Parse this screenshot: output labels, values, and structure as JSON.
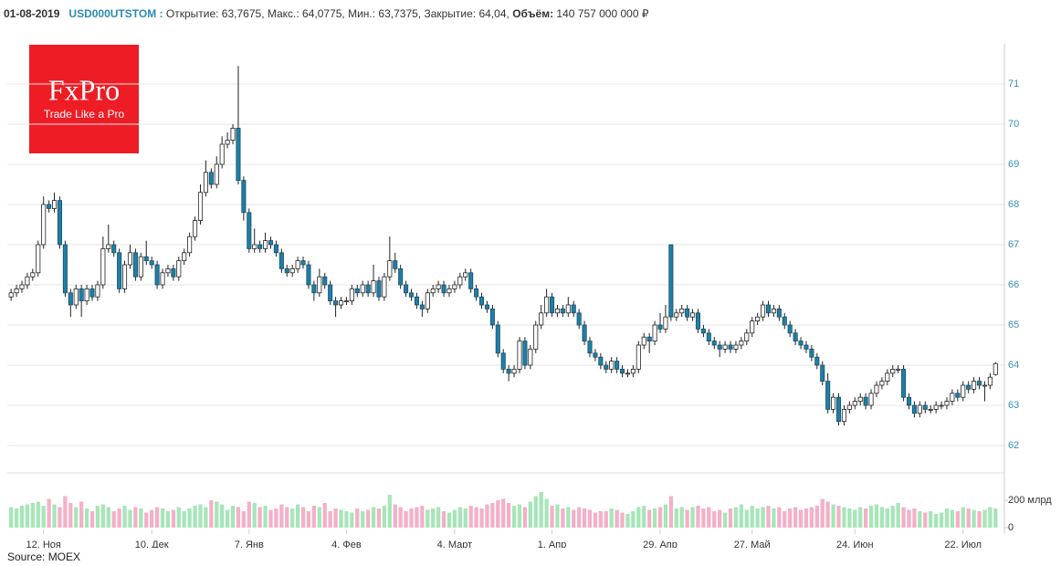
{
  "header": {
    "date": "01-08-2019",
    "ticker": "USD000UTSTOM :",
    "text": "Открытие: 63,7675, Макс.: 64,0775, Мин.: 63,7375, Закрытие: 64,04,",
    "volume_label": "Объём:",
    "volume_text": "140 757 000 000 ₽"
  },
  "logo": {
    "title": "FxPro",
    "slogan": "Trade Like a Pro"
  },
  "source": "Source: MOEX",
  "chart_data": {
    "type": "candlestick",
    "up_color": "#ffffff",
    "down_color": "#1f7fa6",
    "volume_up_color": "#a6e6b8",
    "volume_down_color": "#f4b0c8",
    "xlim": [
      -0.7,
      183.3
    ],
    "xticks": [
      {
        "value": 6,
        "label": "12. Ноя"
      },
      {
        "value": 26,
        "label": "10. Дек"
      },
      {
        "value": 44,
        "label": "7. Янв"
      },
      {
        "value": 62,
        "label": "4. Фев"
      },
      {
        "value": 82,
        "label": "4. Март"
      },
      {
        "value": 100,
        "label": "1. Апр"
      },
      {
        "value": 120,
        "label": "29. Апр"
      },
      {
        "value": 137,
        "label": "27. Май"
      },
      {
        "value": 156,
        "label": "24. Июн"
      },
      {
        "value": 176,
        "label": "22. Июл"
      }
    ],
    "ylim": [
      61.5,
      72
    ],
    "yticks": [
      62,
      63,
      64,
      65,
      66,
      67,
      68,
      69,
      70,
      71
    ],
    "grid": true,
    "y2lim": [
      0,
      400
    ],
    "y2ticks": [
      0,
      {
        "value": 200,
        "label": "200 млрд"
      }
    ],
    "ohlc": [
      [
        65.7,
        65.9,
        65.6,
        65.8
      ],
      [
        65.8,
        66.0,
        65.7,
        65.9
      ],
      [
        65.9,
        66.1,
        65.8,
        66.0
      ],
      [
        66.0,
        66.3,
        65.9,
        66.2
      ],
      [
        66.2,
        66.4,
        66.1,
        66.3
      ],
      [
        66.3,
        67.1,
        66.2,
        67.0
      ],
      [
        67.0,
        68.2,
        66.9,
        68.0
      ],
      [
        68.0,
        68.1,
        67.8,
        67.9
      ],
      [
        67.9,
        68.3,
        67.8,
        68.1
      ],
      [
        68.1,
        68.2,
        66.9,
        67.0
      ],
      [
        67.0,
        67.1,
        65.7,
        65.8
      ],
      [
        65.8,
        65.9,
        65.2,
        65.5
      ],
      [
        65.5,
        66.0,
        65.4,
        65.9
      ],
      [
        65.9,
        66.0,
        65.2,
        65.6
      ],
      [
        65.6,
        66.0,
        65.5,
        65.9
      ],
      [
        65.9,
        66.0,
        65.6,
        65.7
      ],
      [
        65.7,
        66.1,
        65.6,
        66.0
      ],
      [
        66.0,
        67.2,
        65.9,
        66.9
      ],
      [
        66.9,
        67.5,
        66.8,
        67.0
      ],
      [
        67.0,
        67.1,
        66.7,
        66.8
      ],
      [
        66.8,
        66.9,
        65.8,
        65.9
      ],
      [
        65.9,
        66.6,
        65.8,
        66.5
      ],
      [
        66.5,
        67.0,
        66.4,
        66.8
      ],
      [
        66.8,
        66.9,
        66.1,
        66.2
      ],
      [
        66.2,
        66.8,
        66.1,
        66.7
      ],
      [
        66.7,
        67.1,
        66.5,
        66.6
      ],
      [
        66.6,
        66.7,
        66.4,
        66.5
      ],
      [
        66.5,
        66.6,
        65.9,
        66.0
      ],
      [
        66.0,
        66.4,
        65.9,
        66.3
      ],
      [
        66.3,
        66.5,
        66.2,
        66.4
      ],
      [
        66.4,
        66.5,
        66.1,
        66.2
      ],
      [
        66.2,
        66.7,
        66.1,
        66.6
      ],
      [
        66.6,
        66.9,
        66.5,
        66.8
      ],
      [
        66.8,
        67.3,
        66.7,
        67.2
      ],
      [
        67.2,
        67.7,
        67.1,
        67.6
      ],
      [
        67.6,
        68.5,
        67.5,
        68.3
      ],
      [
        68.3,
        69.1,
        68.2,
        68.8
      ],
      [
        68.8,
        68.9,
        68.4,
        68.5
      ],
      [
        68.5,
        69.2,
        68.4,
        69.0
      ],
      [
        69.0,
        69.7,
        68.9,
        69.5
      ],
      [
        69.5,
        69.8,
        69.4,
        69.6
      ],
      [
        69.6,
        70.0,
        69.5,
        69.9
      ],
      [
        69.9,
        71.45,
        68.5,
        68.6
      ],
      [
        68.6,
        68.7,
        67.6,
        67.8
      ],
      [
        67.8,
        67.9,
        66.8,
        66.9
      ],
      [
        66.9,
        67.4,
        66.8,
        67.0
      ],
      [
        67.0,
        67.1,
        66.8,
        66.9
      ],
      [
        66.9,
        67.3,
        66.8,
        67.1
      ],
      [
        67.1,
        67.2,
        66.9,
        67.0
      ],
      [
        67.0,
        67.1,
        66.7,
        66.8
      ],
      [
        66.8,
        66.9,
        66.3,
        66.4
      ],
      [
        66.4,
        66.5,
        66.2,
        66.3
      ],
      [
        66.3,
        66.5,
        66.2,
        66.4
      ],
      [
        66.4,
        66.7,
        66.3,
        66.6
      ],
      [
        66.6,
        66.7,
        66.4,
        66.5
      ],
      [
        66.5,
        66.6,
        65.9,
        66.0
      ],
      [
        66.0,
        66.1,
        65.6,
        65.8
      ],
      [
        65.8,
        66.4,
        65.7,
        66.2
      ],
      [
        66.2,
        66.3,
        65.9,
        66.0
      ],
      [
        66.0,
        66.1,
        65.5,
        65.6
      ],
      [
        65.6,
        65.7,
        65.2,
        65.5
      ],
      [
        65.5,
        65.7,
        65.4,
        65.6
      ],
      [
        65.6,
        65.7,
        65.5,
        65.6
      ],
      [
        65.6,
        66.0,
        65.5,
        65.9
      ],
      [
        65.9,
        66.0,
        65.7,
        65.8
      ],
      [
        65.8,
        66.1,
        65.7,
        66.0
      ],
      [
        66.0,
        66.1,
        65.7,
        65.8
      ],
      [
        65.8,
        66.5,
        65.7,
        66.1
      ],
      [
        66.1,
        66.2,
        65.6,
        65.7
      ],
      [
        65.7,
        66.3,
        65.6,
        66.2
      ],
      [
        66.2,
        67.2,
        66.1,
        66.6
      ],
      [
        66.6,
        66.8,
        66.3,
        66.4
      ],
      [
        66.4,
        66.5,
        65.9,
        66.0
      ],
      [
        66.0,
        66.1,
        65.7,
        65.8
      ],
      [
        65.8,
        65.9,
        65.6,
        65.7
      ],
      [
        65.7,
        65.8,
        65.4,
        65.5
      ],
      [
        65.5,
        65.6,
        65.2,
        65.4
      ],
      [
        65.4,
        65.9,
        65.3,
        65.8
      ],
      [
        65.8,
        66.0,
        65.7,
        65.9
      ],
      [
        65.9,
        66.1,
        65.8,
        66.0
      ],
      [
        66.0,
        66.1,
        65.7,
        65.8
      ],
      [
        65.8,
        66.0,
        65.7,
        65.9
      ],
      [
        65.9,
        66.1,
        65.8,
        66.0
      ],
      [
        66.0,
        66.3,
        65.9,
        66.2
      ],
      [
        66.2,
        66.4,
        66.1,
        66.3
      ],
      [
        66.3,
        66.4,
        65.8,
        65.9
      ],
      [
        65.9,
        66.0,
        65.6,
        65.7
      ],
      [
        65.7,
        65.8,
        65.4,
        65.5
      ],
      [
        65.5,
        65.6,
        65.3,
        65.4
      ],
      [
        65.4,
        65.5,
        64.9,
        65.0
      ],
      [
        65.0,
        65.1,
        64.2,
        64.3
      ],
      [
        64.3,
        64.4,
        63.8,
        63.9
      ],
      [
        63.9,
        64.0,
        63.6,
        63.8
      ],
      [
        63.8,
        64.0,
        63.7,
        63.9
      ],
      [
        63.9,
        64.7,
        63.8,
        64.6
      ],
      [
        64.6,
        64.7,
        63.9,
        64.0
      ],
      [
        64.0,
        64.5,
        63.9,
        64.4
      ],
      [
        64.4,
        65.1,
        64.3,
        65.0
      ],
      [
        65.0,
        65.5,
        64.9,
        65.3
      ],
      [
        65.3,
        65.9,
        65.2,
        65.7
      ],
      [
        65.7,
        65.8,
        65.2,
        65.3
      ],
      [
        65.3,
        65.5,
        65.2,
        65.4
      ],
      [
        65.4,
        65.5,
        65.2,
        65.3
      ],
      [
        65.3,
        65.7,
        65.2,
        65.5
      ],
      [
        65.5,
        65.6,
        65.2,
        65.3
      ],
      [
        65.3,
        65.4,
        64.9,
        65.0
      ],
      [
        65.0,
        65.1,
        64.5,
        64.6
      ],
      [
        64.6,
        64.7,
        64.2,
        64.3
      ],
      [
        64.3,
        64.4,
        64.1,
        64.2
      ],
      [
        64.2,
        64.3,
        63.9,
        64.0
      ],
      [
        64.0,
        64.1,
        63.8,
        63.9
      ],
      [
        63.9,
        64.2,
        63.8,
        64.1
      ],
      [
        64.1,
        64.2,
        63.8,
        63.9
      ],
      [
        63.9,
        64.0,
        63.7,
        63.8
      ],
      [
        63.8,
        63.9,
        63.7,
        63.8
      ],
      [
        63.8,
        64.0,
        63.7,
        63.9
      ],
      [
        63.9,
        64.6,
        63.8,
        64.5
      ],
      [
        64.5,
        64.8,
        64.4,
        64.7
      ],
      [
        64.7,
        64.8,
        64.3,
        64.6
      ],
      [
        64.6,
        65.1,
        64.5,
        65.0
      ],
      [
        65.0,
        65.3,
        64.8,
        64.9
      ],
      [
        64.9,
        65.5,
        64.8,
        65.2
      ],
      [
        67.0,
        67.0,
        65.1,
        65.2
      ],
      [
        65.2,
        65.4,
        65.1,
        65.3
      ],
      [
        65.3,
        65.5,
        65.2,
        65.4
      ],
      [
        65.4,
        65.5,
        65.1,
        65.2
      ],
      [
        65.2,
        65.4,
        65.1,
        65.3
      ],
      [
        65.3,
        65.4,
        64.8,
        64.9
      ],
      [
        64.9,
        65.0,
        64.7,
        64.8
      ],
      [
        64.8,
        64.9,
        64.5,
        64.6
      ],
      [
        64.6,
        64.7,
        64.4,
        64.5
      ],
      [
        64.5,
        64.6,
        64.2,
        64.4
      ],
      [
        64.4,
        64.6,
        64.3,
        64.5
      ],
      [
        64.5,
        64.6,
        64.3,
        64.4
      ],
      [
        64.4,
        64.6,
        64.3,
        64.5
      ],
      [
        64.5,
        64.7,
        64.4,
        64.6
      ],
      [
        64.6,
        64.9,
        64.5,
        64.8
      ],
      [
        64.8,
        65.2,
        64.7,
        65.1
      ],
      [
        65.1,
        65.3,
        65.0,
        65.2
      ],
      [
        65.2,
        65.6,
        65.1,
        65.5
      ],
      [
        65.5,
        65.6,
        65.2,
        65.3
      ],
      [
        65.3,
        65.5,
        65.2,
        65.4
      ],
      [
        65.4,
        65.5,
        65.1,
        65.2
      ],
      [
        65.2,
        65.3,
        64.9,
        65.0
      ],
      [
        65.0,
        65.1,
        64.7,
        64.8
      ],
      [
        64.8,
        64.9,
        64.5,
        64.6
      ],
      [
        64.6,
        64.7,
        64.4,
        64.5
      ],
      [
        64.5,
        64.6,
        64.3,
        64.4
      ],
      [
        64.4,
        64.5,
        64.1,
        64.2
      ],
      [
        64.2,
        64.3,
        63.9,
        64.0
      ],
      [
        64.0,
        64.1,
        63.5,
        63.6
      ],
      [
        63.6,
        63.8,
        62.8,
        62.9
      ],
      [
        62.9,
        63.3,
        62.8,
        63.2
      ],
      [
        63.2,
        63.3,
        62.5,
        62.6
      ],
      [
        62.6,
        63.0,
        62.5,
        62.9
      ],
      [
        62.9,
        63.1,
        62.8,
        63.0
      ],
      [
        63.0,
        63.2,
        62.9,
        63.1
      ],
      [
        63.1,
        63.3,
        63.0,
        63.2
      ],
      [
        63.2,
        63.3,
        62.9,
        63.0
      ],
      [
        63.0,
        63.4,
        62.9,
        63.3
      ],
      [
        63.3,
        63.6,
        63.2,
        63.5
      ],
      [
        63.5,
        63.7,
        63.4,
        63.6
      ],
      [
        63.6,
        63.9,
        63.5,
        63.8
      ],
      [
        63.8,
        64.0,
        63.7,
        63.9
      ],
      [
        63.9,
        64.0,
        63.8,
        63.9
      ],
      [
        63.9,
        64.0,
        63.1,
        63.2
      ],
      [
        63.2,
        63.3,
        62.9,
        63.0
      ],
      [
        63.0,
        63.1,
        62.7,
        62.8
      ],
      [
        62.8,
        63.1,
        62.7,
        63.0
      ],
      [
        63.0,
        63.1,
        62.8,
        62.9
      ],
      [
        62.9,
        63.0,
        62.8,
        62.9
      ],
      [
        62.9,
        63.1,
        62.8,
        63.0
      ],
      [
        63.0,
        63.1,
        62.9,
        63.0
      ],
      [
        63.0,
        63.2,
        62.9,
        63.1
      ],
      [
        63.1,
        63.4,
        63.0,
        63.3
      ],
      [
        63.3,
        63.4,
        63.1,
        63.2
      ],
      [
        63.2,
        63.6,
        63.1,
        63.5
      ],
      [
        63.5,
        63.6,
        63.3,
        63.4
      ],
      [
        63.4,
        63.7,
        63.3,
        63.6
      ],
      [
        63.6,
        63.7,
        63.4,
        63.5
      ],
      [
        63.5,
        63.6,
        63.1,
        63.5
      ],
      [
        63.5,
        63.8,
        63.4,
        63.7
      ],
      [
        63.7675,
        64.0775,
        63.7375,
        64.04
      ]
    ],
    "volume": [
      150,
      140,
      160,
      170,
      180,
      190,
      160,
      210,
      170,
      150,
      230,
      180,
      150,
      190,
      140,
      120,
      160,
      170,
      150,
      120,
      140,
      160,
      130,
      150,
      140,
      110,
      130,
      150,
      140,
      120,
      130,
      150,
      120,
      140,
      160,
      170,
      150,
      200,
      190,
      170,
      130,
      160,
      150,
      120,
      190,
      180,
      150,
      160,
      130,
      140,
      170,
      150,
      140,
      170,
      150,
      120,
      160,
      150,
      180,
      120,
      140,
      130,
      120,
      110,
      140,
      120,
      130,
      150,
      140,
      160,
      240,
      170,
      150,
      120,
      140,
      150,
      160,
      130,
      140,
      150,
      120,
      110,
      130,
      150,
      140,
      160,
      150,
      140,
      170,
      180,
      200,
      210,
      180,
      160,
      170,
      150,
      190,
      230,
      260,
      210,
      160,
      170,
      140,
      150,
      130,
      150,
      140,
      130,
      110,
      120,
      120,
      140,
      130,
      110,
      100,
      120,
      150,
      160,
      130,
      140,
      150,
      170,
      230,
      140,
      150,
      130,
      150,
      160,
      140,
      150,
      120,
      130,
      110,
      140,
      150,
      170,
      130,
      160,
      140,
      150,
      160,
      140,
      150,
      120,
      140,
      150,
      130,
      140,
      150,
      160,
      210,
      190,
      170,
      160,
      150,
      140,
      130,
      150,
      140,
      160,
      170,
      150,
      140,
      160,
      180,
      150,
      130,
      140,
      120,
      110,
      120,
      100,
      110,
      140,
      130,
      120,
      150,
      140,
      130,
      120,
      130,
      150,
      140.757
    ]
  }
}
